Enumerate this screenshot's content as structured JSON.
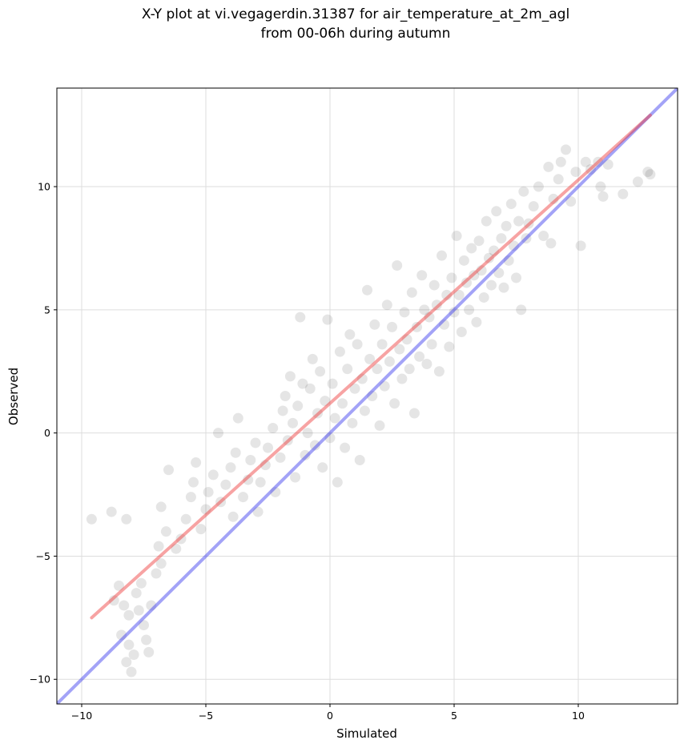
{
  "chart_data": {
    "type": "scatter",
    "title_lines": [
      "X-Y plot at vi.vegagerdin.31387 for air_temperature_at_2m_agl",
      "from 00-06h during autumn"
    ],
    "xlabel": "Simulated",
    "ylabel": "Observed",
    "xlim": [
      -11,
      14
    ],
    "ylim": [
      -11,
      14
    ],
    "x_ticks": [
      -10,
      -5,
      0,
      5,
      10
    ],
    "y_ticks": [
      -10,
      -5,
      0,
      5,
      10
    ],
    "x_tick_labels": [
      "−10",
      "−5",
      "0",
      "5",
      "10"
    ],
    "y_tick_labels": [
      "−10",
      "−5",
      "0",
      "5",
      "10"
    ],
    "grid": true,
    "point_color": "#000000",
    "point_opacity": 0.1,
    "fit_line": {
      "x": [
        -9.6,
        12.9
      ],
      "y": [
        -7.5,
        12.9
      ],
      "color": "#ee3333"
    },
    "identity_line": {
      "x": [
        -11,
        14
      ],
      "y": [
        -11,
        14
      ],
      "color": "#3333ee"
    },
    "points": [
      [
        -9.6,
        -3.5
      ],
      [
        -8.8,
        -3.2
      ],
      [
        -8.2,
        -3.5
      ],
      [
        -8.7,
        -6.8
      ],
      [
        -8.5,
        -6.2
      ],
      [
        -8.3,
        -7.0
      ],
      [
        -8.1,
        -7.4
      ],
      [
        -8.4,
        -8.2
      ],
      [
        -8.2,
        -9.3
      ],
      [
        -8.0,
        -9.7
      ],
      [
        -7.9,
        -9.0
      ],
      [
        -8.1,
        -8.6
      ],
      [
        -7.8,
        -6.5
      ],
      [
        -7.7,
        -7.2
      ],
      [
        -7.5,
        -7.8
      ],
      [
        -7.4,
        -8.4
      ],
      [
        -7.3,
        -8.9
      ],
      [
        -7.6,
        -6.1
      ],
      [
        -7.2,
        -7.0
      ],
      [
        -7.0,
        -5.7
      ],
      [
        -6.8,
        -5.3
      ],
      [
        -6.9,
        -4.6
      ],
      [
        -6.6,
        -4.0
      ],
      [
        -6.8,
        -3.0
      ],
      [
        -6.5,
        -1.5
      ],
      [
        -6.2,
        -4.7
      ],
      [
        -6.0,
        -4.3
      ],
      [
        -5.8,
        -3.5
      ],
      [
        -5.6,
        -2.6
      ],
      [
        -5.4,
        -1.2
      ],
      [
        -5.5,
        -2.0
      ],
      [
        -5.2,
        -3.9
      ],
      [
        -5.0,
        -3.1
      ],
      [
        -4.9,
        -2.4
      ],
      [
        -4.7,
        -1.7
      ],
      [
        -4.5,
        0.0
      ],
      [
        -4.4,
        -2.8
      ],
      [
        -4.2,
        -2.1
      ],
      [
        -4.0,
        -1.4
      ],
      [
        -3.9,
        -3.4
      ],
      [
        -3.8,
        -0.8
      ],
      [
        -3.7,
        0.6
      ],
      [
        -3.5,
        -2.6
      ],
      [
        -3.3,
        -1.9
      ],
      [
        -3.2,
        -1.1
      ],
      [
        -3.0,
        -0.4
      ],
      [
        -2.9,
        -3.2
      ],
      [
        -2.8,
        -2.0
      ],
      [
        -2.6,
        -1.3
      ],
      [
        -2.5,
        -0.6
      ],
      [
        -2.3,
        0.2
      ],
      [
        -2.2,
        -2.4
      ],
      [
        -2.0,
        -1.0
      ],
      [
        -1.9,
        0.9
      ],
      [
        -1.8,
        1.5
      ],
      [
        -1.7,
        -0.3
      ],
      [
        -1.6,
        2.3
      ],
      [
        -1.5,
        0.4
      ],
      [
        -1.4,
        -1.8
      ],
      [
        -1.3,
        1.1
      ],
      [
        -1.2,
        4.7
      ],
      [
        -1.1,
        2.0
      ],
      [
        -1.0,
        -0.9
      ],
      [
        -0.9,
        0.0
      ],
      [
        -0.8,
        1.8
      ],
      [
        -0.7,
        3.0
      ],
      [
        -0.6,
        -0.5
      ],
      [
        -0.5,
        0.8
      ],
      [
        -0.4,
        2.5
      ],
      [
        -0.3,
        -1.4
      ],
      [
        -0.2,
        1.3
      ],
      [
        -0.1,
        4.6
      ],
      [
        0.0,
        -0.2
      ],
      [
        0.1,
        2.0
      ],
      [
        0.2,
        0.6
      ],
      [
        0.3,
        -2.0
      ],
      [
        0.4,
        3.3
      ],
      [
        0.5,
        1.2
      ],
      [
        0.6,
        -0.6
      ],
      [
        0.7,
        2.6
      ],
      [
        0.8,
        4.0
      ],
      [
        0.9,
        0.4
      ],
      [
        1.0,
        1.8
      ],
      [
        1.1,
        3.6
      ],
      [
        1.2,
        -1.1
      ],
      [
        1.3,
        2.2
      ],
      [
        1.4,
        0.9
      ],
      [
        1.5,
        5.8
      ],
      [
        1.6,
        3.0
      ],
      [
        1.7,
        1.5
      ],
      [
        1.8,
        4.4
      ],
      [
        1.9,
        2.6
      ],
      [
        2.0,
        0.3
      ],
      [
        2.1,
        3.6
      ],
      [
        2.2,
        1.9
      ],
      [
        2.3,
        5.2
      ],
      [
        2.4,
        2.9
      ],
      [
        2.5,
        4.3
      ],
      [
        2.6,
        1.2
      ],
      [
        2.7,
        6.8
      ],
      [
        2.8,
        3.4
      ],
      [
        2.9,
        2.2
      ],
      [
        3.0,
        4.9
      ],
      [
        3.1,
        3.8
      ],
      [
        3.2,
        2.6
      ],
      [
        3.3,
        5.7
      ],
      [
        3.4,
        0.8
      ],
      [
        3.5,
        4.3
      ],
      [
        3.6,
        3.1
      ],
      [
        3.7,
        6.4
      ],
      [
        3.8,
        5.0
      ],
      [
        3.9,
        2.8
      ],
      [
        4.0,
        4.7
      ],
      [
        4.1,
        3.6
      ],
      [
        4.2,
        6.0
      ],
      [
        4.3,
        5.2
      ],
      [
        4.4,
        2.5
      ],
      [
        4.5,
        7.2
      ],
      [
        4.6,
        4.4
      ],
      [
        4.7,
        5.6
      ],
      [
        4.8,
        3.5
      ],
      [
        4.9,
        6.3
      ],
      [
        5.0,
        4.9
      ],
      [
        5.1,
        8.0
      ],
      [
        5.2,
        5.6
      ],
      [
        5.3,
        4.1
      ],
      [
        5.4,
        7.0
      ],
      [
        5.5,
        6.1
      ],
      [
        5.6,
        5.0
      ],
      [
        5.7,
        7.5
      ],
      [
        5.8,
        6.4
      ],
      [
        5.9,
        4.5
      ],
      [
        6.0,
        7.8
      ],
      [
        6.1,
        6.6
      ],
      [
        6.2,
        5.5
      ],
      [
        6.3,
        8.6
      ],
      [
        6.4,
        7.1
      ],
      [
        6.5,
        6.0
      ],
      [
        6.6,
        7.4
      ],
      [
        6.7,
        9.0
      ],
      [
        6.8,
        6.5
      ],
      [
        6.9,
        7.9
      ],
      [
        7.0,
        5.9
      ],
      [
        7.1,
        8.4
      ],
      [
        7.2,
        7.0
      ],
      [
        7.3,
        9.3
      ],
      [
        7.4,
        7.6
      ],
      [
        7.5,
        6.3
      ],
      [
        7.6,
        8.6
      ],
      [
        7.7,
        5.0
      ],
      [
        7.8,
        9.8
      ],
      [
        7.9,
        7.9
      ],
      [
        8.0,
        8.5
      ],
      [
        8.2,
        9.2
      ],
      [
        8.4,
        10.0
      ],
      [
        8.6,
        8.0
      ],
      [
        8.8,
        10.8
      ],
      [
        8.9,
        7.7
      ],
      [
        9.0,
        9.5
      ],
      [
        9.2,
        10.3
      ],
      [
        9.3,
        11.0
      ],
      [
        9.5,
        11.5
      ],
      [
        9.7,
        9.4
      ],
      [
        9.9,
        10.6
      ],
      [
        10.1,
        7.6
      ],
      [
        10.3,
        11.0
      ],
      [
        10.5,
        10.7
      ],
      [
        10.8,
        11.0
      ],
      [
        10.9,
        10.0
      ],
      [
        11.0,
        9.6
      ],
      [
        11.2,
        10.9
      ],
      [
        11.8,
        9.7
      ],
      [
        12.4,
        10.2
      ],
      [
        12.8,
        10.6
      ],
      [
        12.9,
        10.5
      ]
    ]
  }
}
